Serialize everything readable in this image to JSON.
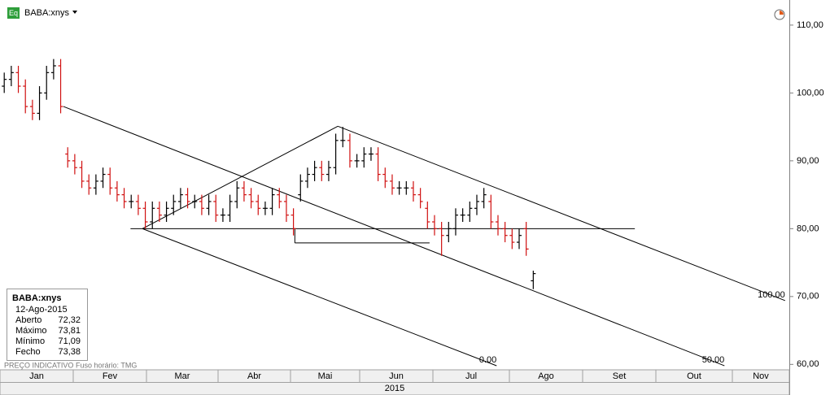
{
  "chart_data": {
    "type": "ohlc",
    "symbol": "BABA:xnys",
    "source_note": "PREÇO INDICATIVO",
    "timezone_note": "Fuso horário: TMG",
    "months": [
      "Jan",
      "Fev",
      "Mar",
      "Abr",
      "Mai",
      "Jun",
      "Jul",
      "Ago",
      "Set",
      "Out",
      "Nov"
    ],
    "year": "2015",
    "up_color": "#000000",
    "down_color": "#d01010",
    "open": [
      101,
      102,
      103,
      101,
      98,
      97,
      100,
      103,
      104,
      91,
      90,
      89,
      87,
      86,
      87,
      88,
      86,
      85,
      84,
      84,
      83,
      81,
      83,
      82,
      83,
      84,
      85,
      84,
      84,
      83,
      84,
      82,
      82,
      84,
      86,
      85,
      84,
      83,
      83,
      85,
      84,
      82,
      85,
      87,
      88,
      89,
      88,
      89,
      93,
      93,
      90,
      90,
      91,
      91,
      88,
      87,
      86,
      86,
      86,
      85,
      83,
      81,
      80,
      79,
      80,
      82,
      82,
      83,
      84,
      84,
      81,
      80,
      79,
      78,
      80,
      72.32
    ],
    "high": [
      103,
      104,
      104,
      102,
      99,
      101,
      104,
      105,
      105,
      92,
      91,
      90,
      88,
      88,
      89,
      89,
      87,
      86,
      85,
      85,
      84,
      84,
      84,
      84,
      85,
      86,
      86,
      85,
      85,
      85,
      85,
      83,
      85,
      87,
      87,
      86,
      85,
      84,
      86,
      86,
      85,
      83,
      88,
      89,
      90,
      90,
      90,
      94,
      95,
      94,
      91,
      92,
      92,
      92,
      89,
      88,
      87,
      87,
      87,
      86,
      84,
      82,
      81,
      81,
      83,
      83,
      84,
      85,
      86,
      85,
      82,
      81,
      80,
      80,
      81,
      73.81
    ],
    "low": [
      100,
      101,
      100,
      97,
      96,
      96,
      99,
      102,
      97,
      89,
      88,
      86,
      85,
      85,
      86,
      85,
      84,
      83,
      83,
      82,
      80,
      80,
      81,
      81,
      82,
      83,
      83,
      83,
      82,
      82,
      81,
      81,
      81,
      83,
      84,
      83,
      82,
      82,
      82,
      83,
      81,
      79,
      84,
      86,
      87,
      87,
      87,
      88,
      92,
      89,
      89,
      89,
      90,
      87,
      86,
      85,
      85,
      85,
      84,
      83,
      80,
      79,
      76,
      78,
      79,
      81,
      81,
      82,
      83,
      80,
      79,
      78,
      77,
      77,
      76,
      71.09
    ],
    "close": [
      102,
      103,
      101,
      98,
      97,
      100,
      103,
      104,
      98,
      90,
      89,
      87,
      86,
      87,
      88,
      86,
      85,
      84,
      84,
      83,
      81,
      83,
      82,
      83,
      84,
      85,
      84,
      84,
      83,
      84,
      82,
      82,
      84,
      86,
      85,
      84,
      83,
      83,
      85,
      84,
      82,
      80,
      87,
      88,
      89,
      88,
      89,
      93,
      93,
      90,
      90,
      91,
      91,
      88,
      87,
      86,
      86,
      86,
      85,
      84,
      81,
      80,
      79,
      80,
      82,
      82,
      83,
      84,
      85,
      81,
      80,
      79,
      78,
      79,
      77,
      73.38
    ],
    "xlim": [
      -0.6,
      111.3
    ],
    "ylim": [
      59.2,
      113.7
    ],
    "yticks": [
      {
        "value": 60,
        "label": "60,00"
      },
      {
        "value": 70,
        "label": "70,00"
      },
      {
        "value": 80,
        "label": "80,00"
      },
      {
        "value": 90,
        "label": "90,00"
      },
      {
        "value": 100,
        "label": "100,00"
      },
      {
        "value": 110,
        "label": "110,00"
      }
    ],
    "drawings": {
      "channel_lines": [
        {
          "label": "0.00",
          "x": [
            19.6,
            69.8
          ],
          "y": [
            80.0,
            59.8
          ]
        },
        {
          "label": "50.00",
          "x": [
            8.4,
            102.1
          ],
          "y": [
            98.0,
            59.8
          ]
        },
        {
          "label": "100.00",
          "x": [
            47.3,
            110.7
          ],
          "y": [
            95.1,
            69.4
          ]
        }
      ],
      "segments": [
        {
          "x": [
            19.6,
            47.3
          ],
          "y": [
            80.0,
            95.1
          ]
        },
        {
          "x": [
            17.9,
            89.4
          ],
          "y": [
            80.0,
            80.0
          ]
        },
        {
          "x": [
            41.2,
            41.2
          ],
          "y": [
            80.0,
            77.9
          ]
        },
        {
          "x": [
            41.2,
            60.3
          ],
          "y": [
            77.9,
            77.9
          ]
        }
      ]
    },
    "info_box": {
      "title": "BABA:xnys",
      "date": "12-Ago-2015",
      "rows": [
        {
          "label": "Aberto",
          "value": "72,32"
        },
        {
          "label": "Máximo",
          "value": "73,81"
        },
        {
          "label": "Mínimo",
          "value": "71,09"
        },
        {
          "label": "Fecho",
          "value": "73,38"
        }
      ]
    }
  }
}
